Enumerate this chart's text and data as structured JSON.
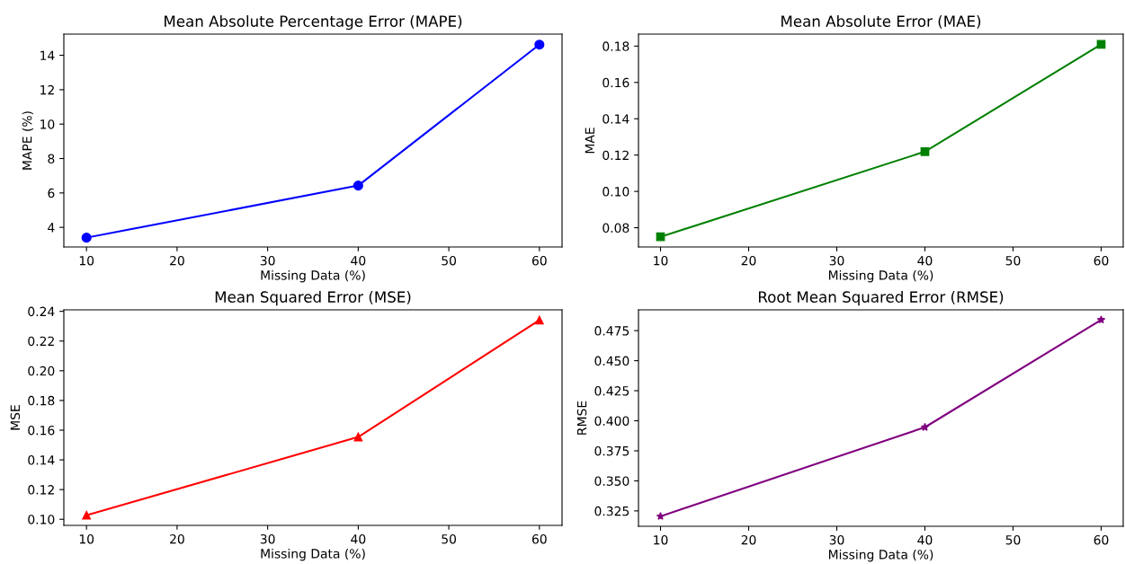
{
  "chart_data": [
    {
      "type": "line",
      "title": "Mean Absolute Percentage Error (MAPE)",
      "xlabel": "Missing Data (%)",
      "ylabel": "MAPE (%)",
      "x": [
        10,
        40,
        60
      ],
      "series": [
        {
          "color": "#0000ff",
          "values": [
            3.4,
            6.43,
            14.62
          ]
        }
      ],
      "marker": "circle",
      "xlim": [
        7.5,
        62.5
      ],
      "xticks": [
        10,
        20,
        30,
        40,
        50,
        60
      ],
      "ylim": [
        2.86,
        15.23
      ],
      "yticks": [
        4,
        6,
        8,
        10,
        12,
        14
      ],
      "grid": false,
      "legend": false
    },
    {
      "type": "line",
      "title": "Mean Absolute Error (MAE)",
      "xlabel": "Missing Data (%)",
      "ylabel": "MAE",
      "x": [
        10,
        40,
        60
      ],
      "series": [
        {
          "color": "#008000",
          "values": [
            0.075,
            0.1219,
            0.181
          ]
        }
      ],
      "marker": "square",
      "xlim": [
        7.5,
        62.5
      ],
      "xticks": [
        10,
        20,
        30,
        40,
        50,
        60
      ],
      "ylim": [
        0.0694,
        0.1866
      ],
      "yticks": [
        {
          "value": 0.08,
          "label": "0.08"
        },
        {
          "value": 0.1,
          "label": "0.10"
        },
        {
          "value": 0.12,
          "label": "0.12"
        },
        {
          "value": 0.14,
          "label": "0.14"
        },
        {
          "value": 0.16,
          "label": "0.16"
        },
        {
          "value": 0.18,
          "label": "0.18"
        }
      ],
      "grid": false,
      "legend": false
    },
    {
      "type": "line",
      "title": "Mean Squared Error (MSE)",
      "xlabel": "Missing Data (%)",
      "ylabel": "MSE",
      "x": [
        10,
        40,
        60
      ],
      "series": [
        {
          "color": "#ff0000",
          "values": [
            0.1027,
            0.1554,
            0.2341
          ]
        }
      ],
      "marker": "triangle",
      "xlim": [
        7.5,
        62.5
      ],
      "xticks": [
        10,
        20,
        30,
        40,
        50,
        60
      ],
      "ylim": [
        0.0959,
        0.241
      ],
      "yticks": [
        {
          "value": 0.1,
          "label": "0.10"
        },
        {
          "value": 0.12,
          "label": "0.12"
        },
        {
          "value": 0.14,
          "label": "0.14"
        },
        {
          "value": 0.16,
          "label": "0.16"
        },
        {
          "value": 0.18,
          "label": "0.18"
        },
        {
          "value": 0.2,
          "label": "0.20"
        },
        {
          "value": 0.22,
          "label": "0.22"
        },
        {
          "value": 0.24,
          "label": "0.24"
        }
      ],
      "grid": false,
      "legend": false
    },
    {
      "type": "line",
      "title": "Root Mean Squared Error (RMSE)",
      "xlabel": "Missing Data (%)",
      "ylabel": "RMSE",
      "x": [
        10,
        40,
        60
      ],
      "series": [
        {
          "color": "#800080",
          "values": [
            0.3205,
            0.3946,
            0.484
          ]
        }
      ],
      "marker": "star",
      "xlim": [
        7.5,
        62.5
      ],
      "xticks": [
        10,
        20,
        30,
        40,
        50,
        60
      ],
      "ylim": [
        0.3122,
        0.4923
      ],
      "yticks": [
        0.325,
        {
          "value": 0.35,
          "label": "0.350"
        },
        0.375,
        {
          "value": 0.4,
          "label": "0.400"
        },
        0.425,
        {
          "value": 0.45,
          "label": "0.450"
        },
        0.475
      ],
      "grid": false,
      "legend": false
    }
  ]
}
